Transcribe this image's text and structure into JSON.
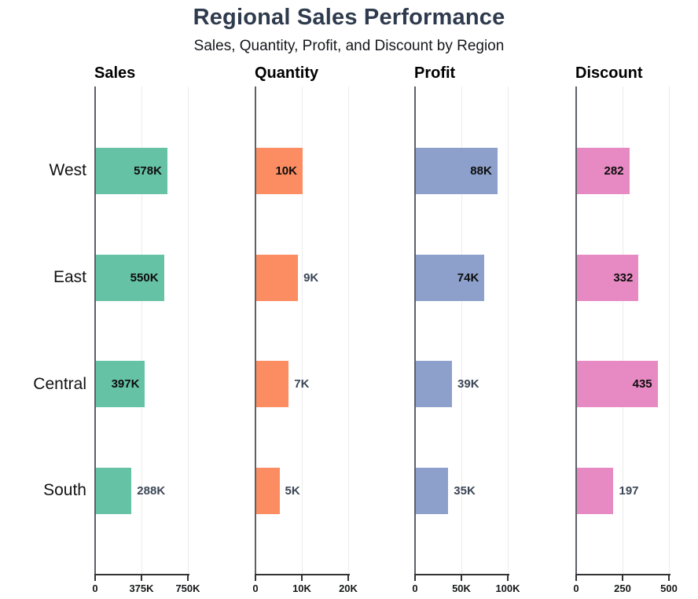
{
  "chart_data": {
    "type": "bar",
    "orientation": "horizontal",
    "title": "Regional Sales Performance",
    "subtitle": "Sales, Quantity, Profit, and Discount by Region",
    "categories": [
      "West",
      "East",
      "Central",
      "South"
    ],
    "legend": "none",
    "grid": "vertical gridlines at mid and max of each panel",
    "panels": [
      {
        "name": "Sales",
        "color": "#66c2a5",
        "xlim": [
          0,
          750000
        ],
        "ticks": [
          "0",
          "375K",
          "750K"
        ],
        "values": [
          578000,
          550000,
          397000,
          288000
        ],
        "value_labels": [
          "578K",
          "550K",
          "397K",
          "288K"
        ]
      },
      {
        "name": "Quantity",
        "color": "#fc8d62",
        "xlim": [
          0,
          20000
        ],
        "ticks": [
          "0",
          "10K",
          "20K"
        ],
        "values": [
          10000,
          9000,
          7000,
          5000
        ],
        "value_labels": [
          "10K",
          "9K",
          "7K",
          "5K"
        ]
      },
      {
        "name": "Profit",
        "color": "#8da0cb",
        "xlim": [
          0,
          100000
        ],
        "ticks": [
          "0",
          "50K",
          "100K"
        ],
        "values": [
          88000,
          74000,
          39000,
          35000
        ],
        "value_labels": [
          "88K",
          "74K",
          "39K",
          "35K"
        ]
      },
      {
        "name": "Discount",
        "color": "#e78ac3",
        "xlim": [
          0,
          500
        ],
        "ticks": [
          "0",
          "250",
          "500"
        ],
        "values": [
          282,
          332,
          435,
          197
        ],
        "value_labels": [
          "282",
          "332",
          "435",
          "197"
        ]
      }
    ],
    "style_colors": {
      "title_color": "#2e3a4d",
      "axis_spine_color": "#5c6067",
      "axis_line_color": "#333333",
      "gridline_color": "#ececec",
      "label_inside_color": "#0d0d0d",
      "label_outside_color": "#3c4656"
    }
  }
}
